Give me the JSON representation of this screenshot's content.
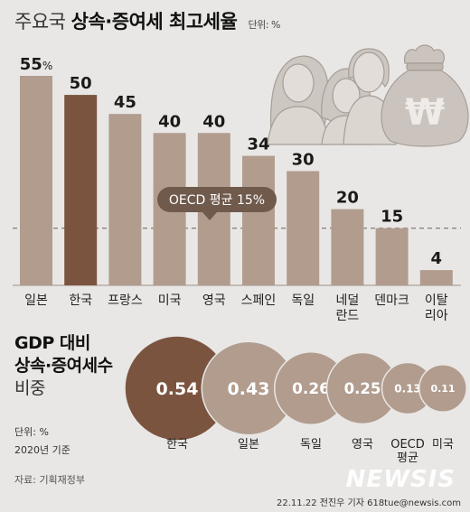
{
  "header": {
    "title_normal": "주요국",
    "title_strong": "상속·증여세 최고세율",
    "unit": "단위: %"
  },
  "chart_data": [
    {
      "type": "bar",
      "categories": [
        "일본",
        "한국",
        "프랑스",
        "미국",
        "영국",
        "스페인",
        "독일",
        "네덜\n란드",
        "덴마크",
        "이탈\n리아"
      ],
      "values": [
        55,
        50,
        45,
        40,
        40,
        34,
        30,
        20,
        15,
        4
      ],
      "value_labels": [
        "55%",
        "50",
        "45",
        "40",
        "40",
        "34",
        "30",
        "20",
        "15",
        "4"
      ],
      "reference_line": {
        "label": "OECD 평균 15%",
        "value": 15
      },
      "highlight": "한국",
      "ylim": [
        0,
        55
      ],
      "colors": {
        "bar": "#b19c8e",
        "highlight": "#7b5440",
        "callout": "#6f5a4c"
      }
    },
    {
      "type": "bubble",
      "title_lines": [
        "GDP 대비",
        "상속·증여세수"
      ],
      "subtitle": "비중",
      "categories": [
        "한국",
        "일본",
        "독일",
        "영국",
        "OECD\n평균",
        "미국"
      ],
      "values": [
        0.54,
        0.43,
        0.26,
        0.25,
        0.13,
        0.11
      ],
      "value_labels": [
        "0.54",
        "0.43",
        "0.26",
        "0.25",
        "0.13",
        "0.11"
      ],
      "highlight": "한국",
      "colors": {
        "bubble": "#b19c8e",
        "highlight": "#7b5440"
      }
    }
  ],
  "section2": {
    "line1": "GDP 대비",
    "line2": "상속·증여세수",
    "line3": "비중",
    "unit": "단위: %",
    "year": "2020년 기준"
  },
  "footer": {
    "source": "자료: 기획재정부",
    "credit": "22.11.22 전진우 기자 618tue@newsis.com",
    "watermark": "NEWSIS"
  },
  "illustration": {
    "icons": [
      "family-icon",
      "money-bag-icon"
    ],
    "bag_symbol": "₩"
  }
}
